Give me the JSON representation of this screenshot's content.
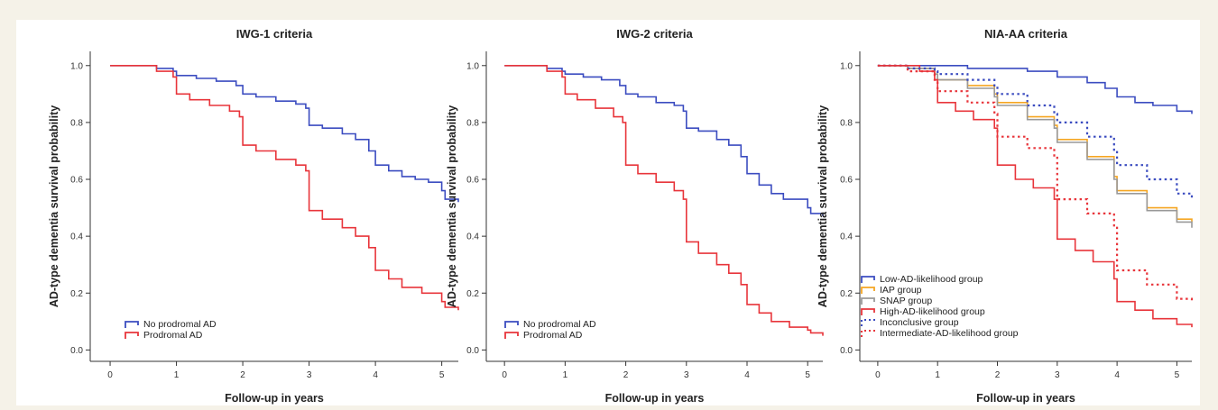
{
  "chart_data": [
    {
      "type": "line",
      "subtype": "step",
      "title": "IWG-1 criteria",
      "xlabel": "Follow-up in years",
      "ylabel": "AD-type dementia survival probability",
      "xlim": [
        -0.3,
        5.25
      ],
      "ylim": [
        -0.04,
        1.05
      ],
      "xticks": [
        "0",
        "1",
        "2",
        "3",
        "4",
        "5"
      ],
      "yticks": [
        "0.0",
        "0.2",
        "0.4",
        "0.6",
        "0.8",
        "1.0"
      ],
      "grid": false,
      "legend_position": "bottom-left",
      "series": [
        {
          "name": "No prodromal AD",
          "color": "#3b4cc0",
          "dashed": false,
          "points": [
            [
              0,
              1.0
            ],
            [
              0.5,
              1.0
            ],
            [
              0.7,
              0.99
            ],
            [
              0.95,
              0.98
            ],
            [
              1.0,
              0.965
            ],
            [
              1.3,
              0.955
            ],
            [
              1.6,
              0.945
            ],
            [
              1.9,
              0.93
            ],
            [
              2.0,
              0.9
            ],
            [
              2.2,
              0.89
            ],
            [
              2.5,
              0.875
            ],
            [
              2.8,
              0.865
            ],
            [
              2.95,
              0.85
            ],
            [
              3.0,
              0.79
            ],
            [
              3.2,
              0.78
            ],
            [
              3.5,
              0.76
            ],
            [
              3.7,
              0.74
            ],
            [
              3.9,
              0.7
            ],
            [
              4.0,
              0.65
            ],
            [
              4.2,
              0.63
            ],
            [
              4.4,
              0.61
            ],
            [
              4.6,
              0.6
            ],
            [
              4.8,
              0.59
            ],
            [
              5.0,
              0.56
            ],
            [
              5.05,
              0.53
            ],
            [
              5.25,
              0.52
            ]
          ]
        },
        {
          "name": "Prodromal AD",
          "color": "#e8353b",
          "dashed": false,
          "points": [
            [
              0,
              1.0
            ],
            [
              0.4,
              1.0
            ],
            [
              0.7,
              0.98
            ],
            [
              0.95,
              0.96
            ],
            [
              1.0,
              0.9
            ],
            [
              1.2,
              0.88
            ],
            [
              1.5,
              0.86
            ],
            [
              1.8,
              0.84
            ],
            [
              1.95,
              0.82
            ],
            [
              2.0,
              0.72
            ],
            [
              2.2,
              0.7
            ],
            [
              2.5,
              0.67
            ],
            [
              2.8,
              0.65
            ],
            [
              2.95,
              0.63
            ],
            [
              3.0,
              0.49
            ],
            [
              3.2,
              0.46
            ],
            [
              3.5,
              0.43
            ],
            [
              3.7,
              0.4
            ],
            [
              3.9,
              0.36
            ],
            [
              4.0,
              0.28
            ],
            [
              4.2,
              0.25
            ],
            [
              4.4,
              0.22
            ],
            [
              4.7,
              0.2
            ],
            [
              5.0,
              0.17
            ],
            [
              5.05,
              0.15
            ],
            [
              5.25,
              0.14
            ]
          ]
        }
      ]
    },
    {
      "type": "line",
      "subtype": "step",
      "title": "IWG-2 criteria",
      "xlabel": "Follow-up in years",
      "ylabel": "AD-type dementia survival probability",
      "xlim": [
        -0.3,
        5.25
      ],
      "ylim": [
        -0.04,
        1.05
      ],
      "xticks": [
        "0",
        "1",
        "2",
        "3",
        "4",
        "5"
      ],
      "yticks": [
        "0.0",
        "0.2",
        "0.4",
        "0.6",
        "0.8",
        "1.0"
      ],
      "grid": false,
      "legend_position": "bottom-left",
      "series": [
        {
          "name": "No prodromal AD",
          "color": "#3b4cc0",
          "dashed": false,
          "points": [
            [
              0,
              1.0
            ],
            [
              0.5,
              1.0
            ],
            [
              0.7,
              0.99
            ],
            [
              0.95,
              0.98
            ],
            [
              1.0,
              0.97
            ],
            [
              1.3,
              0.96
            ],
            [
              1.6,
              0.95
            ],
            [
              1.9,
              0.93
            ],
            [
              2.0,
              0.9
            ],
            [
              2.2,
              0.89
            ],
            [
              2.5,
              0.87
            ],
            [
              2.8,
              0.86
            ],
            [
              2.95,
              0.84
            ],
            [
              3.0,
              0.78
            ],
            [
              3.2,
              0.77
            ],
            [
              3.5,
              0.74
            ],
            [
              3.7,
              0.72
            ],
            [
              3.9,
              0.68
            ],
            [
              4.0,
              0.62
            ],
            [
              4.2,
              0.58
            ],
            [
              4.4,
              0.55
            ],
            [
              4.6,
              0.53
            ],
            [
              4.8,
              0.53
            ],
            [
              5.0,
              0.5
            ],
            [
              5.05,
              0.48
            ],
            [
              5.25,
              0.47
            ]
          ]
        },
        {
          "name": "Prodromal AD",
          "color": "#e8353b",
          "dashed": false,
          "points": [
            [
              0,
              1.0
            ],
            [
              0.4,
              1.0
            ],
            [
              0.7,
              0.98
            ],
            [
              0.95,
              0.96
            ],
            [
              1.0,
              0.9
            ],
            [
              1.2,
              0.88
            ],
            [
              1.5,
              0.85
            ],
            [
              1.8,
              0.82
            ],
            [
              1.95,
              0.8
            ],
            [
              2.0,
              0.65
            ],
            [
              2.2,
              0.62
            ],
            [
              2.5,
              0.59
            ],
            [
              2.8,
              0.56
            ],
            [
              2.95,
              0.53
            ],
            [
              3.0,
              0.38
            ],
            [
              3.2,
              0.34
            ],
            [
              3.5,
              0.3
            ],
            [
              3.7,
              0.27
            ],
            [
              3.9,
              0.23
            ],
            [
              4.0,
              0.16
            ],
            [
              4.2,
              0.13
            ],
            [
              4.4,
              0.1
            ],
            [
              4.7,
              0.08
            ],
            [
              5.0,
              0.07
            ],
            [
              5.05,
              0.06
            ],
            [
              5.25,
              0.05
            ]
          ]
        }
      ]
    },
    {
      "type": "line",
      "subtype": "step",
      "title": "NIA-AA criteria",
      "xlabel": "Follow-up in years",
      "ylabel": "AD-type dementia survival probability",
      "xlim": [
        -0.3,
        5.25
      ],
      "ylim": [
        -0.04,
        1.05
      ],
      "xticks": [
        "0",
        "1",
        "2",
        "3",
        "4",
        "5"
      ],
      "yticks": [
        "0.0",
        "0.2",
        "0.4",
        "0.6",
        "0.8",
        "1.0"
      ],
      "grid": false,
      "legend_position": "bottom-left",
      "series": [
        {
          "name": "Low-AD-likelihood group",
          "color": "#3b4cc0",
          "dashed": false,
          "points": [
            [
              0,
              1.0
            ],
            [
              1.0,
              1.0
            ],
            [
              1.5,
              0.99
            ],
            [
              2.0,
              0.99
            ],
            [
              2.5,
              0.98
            ],
            [
              3.0,
              0.96
            ],
            [
              3.5,
              0.94
            ],
            [
              3.8,
              0.92
            ],
            [
              4.0,
              0.89
            ],
            [
              4.3,
              0.87
            ],
            [
              4.6,
              0.86
            ],
            [
              5.0,
              0.84
            ],
            [
              5.25,
              0.83
            ]
          ]
        },
        {
          "name": "IAP group",
          "color": "#f5a623",
          "dashed": false,
          "points": [
            [
              0,
              1.0
            ],
            [
              0.5,
              0.99
            ],
            [
              0.95,
              0.97
            ],
            [
              1.0,
              0.95
            ],
            [
              1.5,
              0.93
            ],
            [
              1.95,
              0.9
            ],
            [
              2.0,
              0.87
            ],
            [
              2.5,
              0.82
            ],
            [
              2.95,
              0.79
            ],
            [
              3.0,
              0.74
            ],
            [
              3.5,
              0.68
            ],
            [
              3.95,
              0.61
            ],
            [
              4.0,
              0.56
            ],
            [
              4.5,
              0.5
            ],
            [
              5.0,
              0.46
            ],
            [
              5.25,
              0.45
            ]
          ]
        },
        {
          "name": "SNAP group",
          "color": "#999999",
          "dashed": false,
          "points": [
            [
              0,
              1.0
            ],
            [
              0.5,
              0.99
            ],
            [
              0.95,
              0.97
            ],
            [
              1.0,
              0.95
            ],
            [
              1.5,
              0.92
            ],
            [
              1.95,
              0.89
            ],
            [
              2.0,
              0.86
            ],
            [
              2.5,
              0.81
            ],
            [
              2.95,
              0.78
            ],
            [
              3.0,
              0.73
            ],
            [
              3.5,
              0.67
            ],
            [
              3.95,
              0.6
            ],
            [
              4.0,
              0.55
            ],
            [
              4.5,
              0.49
            ],
            [
              5.0,
              0.45
            ],
            [
              5.25,
              0.43
            ]
          ]
        },
        {
          "name": "High-AD-likelihood group",
          "color": "#e8353b",
          "dashed": false,
          "points": [
            [
              0,
              1.0
            ],
            [
              0.4,
              1.0
            ],
            [
              0.7,
              0.98
            ],
            [
              0.95,
              0.95
            ],
            [
              1.0,
              0.87
            ],
            [
              1.3,
              0.84
            ],
            [
              1.6,
              0.81
            ],
            [
              1.95,
              0.78
            ],
            [
              2.0,
              0.65
            ],
            [
              2.3,
              0.6
            ],
            [
              2.6,
              0.57
            ],
            [
              2.95,
              0.53
            ],
            [
              3.0,
              0.39
            ],
            [
              3.3,
              0.35
            ],
            [
              3.6,
              0.31
            ],
            [
              3.95,
              0.25
            ],
            [
              4.0,
              0.17
            ],
            [
              4.3,
              0.14
            ],
            [
              4.6,
              0.11
            ],
            [
              5.0,
              0.09
            ],
            [
              5.25,
              0.08
            ]
          ]
        },
        {
          "name": "Inconclusive group",
          "color": "#3b4cc0",
          "dashed": true,
          "points": [
            [
              0,
              1.0
            ],
            [
              0.5,
              0.99
            ],
            [
              0.95,
              0.98
            ],
            [
              1.0,
              0.97
            ],
            [
              1.5,
              0.95
            ],
            [
              1.95,
              0.93
            ],
            [
              2.0,
              0.9
            ],
            [
              2.5,
              0.86
            ],
            [
              2.95,
              0.83
            ],
            [
              3.0,
              0.8
            ],
            [
              3.5,
              0.75
            ],
            [
              3.95,
              0.7
            ],
            [
              4.0,
              0.65
            ],
            [
              4.5,
              0.6
            ],
            [
              5.0,
              0.55
            ],
            [
              5.25,
              0.53
            ]
          ]
        },
        {
          "name": "Intermediate-AD-likelihood group",
          "color": "#e8353b",
          "dashed": true,
          "points": [
            [
              0,
              1.0
            ],
            [
              0.5,
              0.98
            ],
            [
              0.95,
              0.95
            ],
            [
              1.0,
              0.91
            ],
            [
              1.5,
              0.87
            ],
            [
              1.95,
              0.83
            ],
            [
              2.0,
              0.75
            ],
            [
              2.5,
              0.71
            ],
            [
              2.95,
              0.68
            ],
            [
              3.0,
              0.53
            ],
            [
              3.5,
              0.48
            ],
            [
              3.95,
              0.43
            ],
            [
              4.0,
              0.28
            ],
            [
              4.5,
              0.23
            ],
            [
              5.0,
              0.18
            ],
            [
              5.25,
              0.17
            ]
          ]
        }
      ]
    }
  ]
}
